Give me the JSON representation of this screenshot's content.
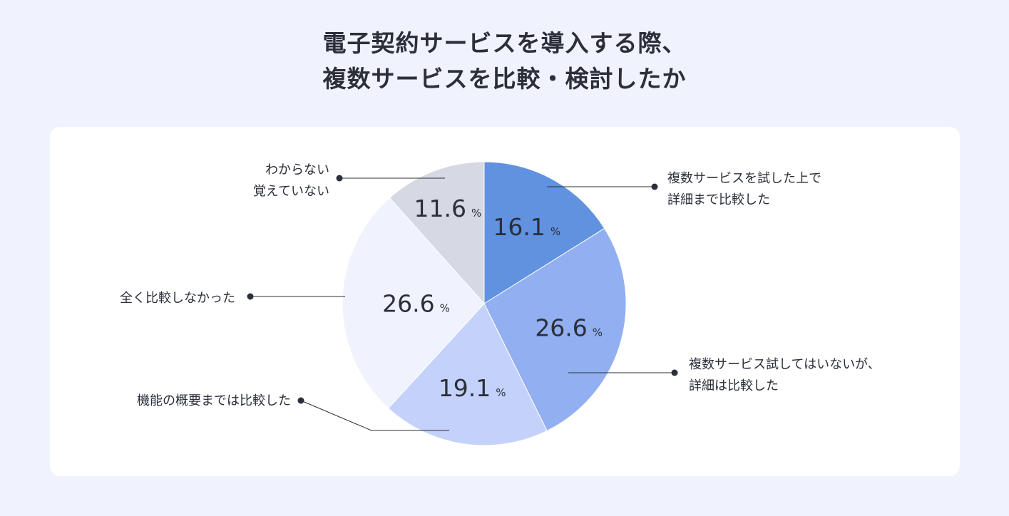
{
  "chart_data": {
    "type": "pie",
    "title": [
      "電子契約サービスを導入する際、",
      "複数サービスを比較・検討したか"
    ],
    "unit": "%",
    "slices": [
      {
        "label": [
          "複数サービスを試した上で",
          "詳細まで比較した"
        ],
        "value": 16.1,
        "value_text": "16.1",
        "color": "#6192e0"
      },
      {
        "label": [
          "複数サービス試してはいないが、",
          "詳細は比較した"
        ],
        "value": 26.6,
        "value_text": "26.6",
        "color": "#91aff1"
      },
      {
        "label": [
          "機能の概要までは比較した"
        ],
        "value": 19.1,
        "value_text": "19.1",
        "color": "#c4d2fb"
      },
      {
        "label": [
          "全く比較しなかった"
        ],
        "value": 26.6,
        "value_text": "26.6",
        "color": "#f0f3fd"
      },
      {
        "label": [
          "わからない",
          "覚えていない"
        ],
        "value": 11.6,
        "value_text": "11.6",
        "color": "#d6d9e3"
      }
    ],
    "legend_placement": "around-pie-with-leader-lines",
    "grid": false
  },
  "colors": {
    "background": "#f0f3fd",
    "card": "#ffffff",
    "text": "#2b2f3a",
    "leader": "#2b2f3a"
  }
}
